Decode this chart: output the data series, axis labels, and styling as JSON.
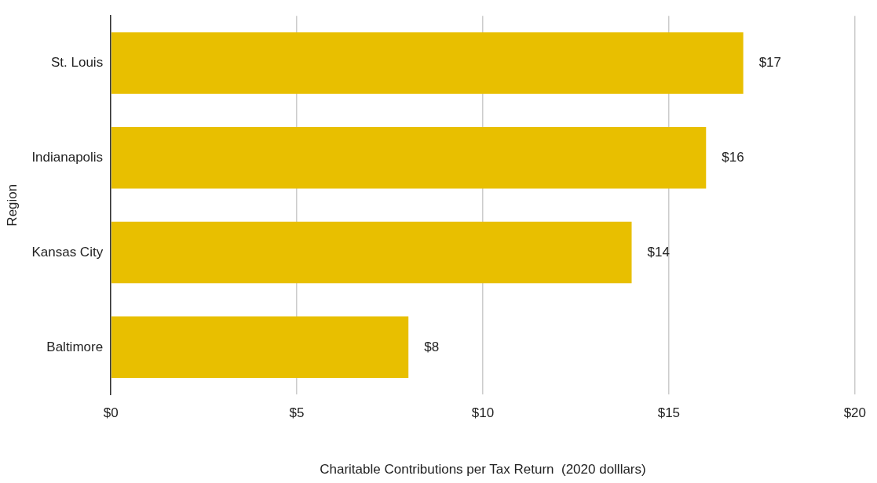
{
  "chart_data": {
    "type": "bar",
    "orientation": "horizontal",
    "xlabel": "Charitable Contributions per Tax Return  (2020 dolllars)",
    "ylabel": "Region",
    "categories": [
      "St. Louis",
      "Indianapolis",
      "Kansas City",
      "Baltimore"
    ],
    "values": [
      17,
      16,
      14,
      8
    ],
    "value_labels": [
      "$17",
      "$16",
      "$14",
      "$8"
    ],
    "color": "#e8bf00",
    "xlim": [
      0,
      20
    ],
    "xticks": [
      {
        "value": 0,
        "label": "$0"
      },
      {
        "value": 5,
        "label": "$5"
      },
      {
        "value": 10,
        "label": "$10"
      },
      {
        "value": 15,
        "label": "$15"
      },
      {
        "value": 20,
        "label": "$20"
      }
    ],
    "grid": "x",
    "legend": false
  }
}
